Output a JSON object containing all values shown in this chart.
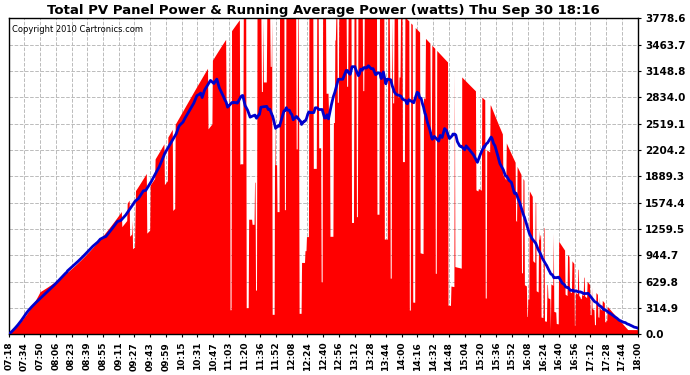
{
  "title": "Total PV Panel Power & Running Average Power (watts) Thu Sep 30 18:16",
  "copyright": "Copyright 2010 Cartronics.com",
  "yticks": [
    0.0,
    314.9,
    629.8,
    944.7,
    1259.5,
    1574.4,
    1889.3,
    2204.2,
    2519.1,
    2834.0,
    3148.8,
    3463.7,
    3778.6
  ],
  "ymax": 3778.6,
  "background_color": "#ffffff",
  "plot_bg_color": "#ffffff",
  "grid_color": "#bbbbbb",
  "fill_color": "#ff0000",
  "line_color": "#0000cc",
  "title_color": "#000000",
  "xtick_labels": [
    "07:18",
    "07:34",
    "07:50",
    "08:06",
    "08:23",
    "08:39",
    "08:55",
    "09:11",
    "09:27",
    "09:43",
    "09:59",
    "10:15",
    "10:31",
    "10:47",
    "11:03",
    "11:20",
    "11:36",
    "11:52",
    "12:08",
    "12:24",
    "12:40",
    "12:56",
    "13:12",
    "13:28",
    "13:44",
    "14:00",
    "14:16",
    "14:32",
    "14:48",
    "15:04",
    "15:20",
    "15:36",
    "15:52",
    "16:08",
    "16:24",
    "16:40",
    "16:56",
    "17:12",
    "17:28",
    "17:44",
    "18:00"
  ],
  "figwidth": 6.9,
  "figheight": 3.75,
  "dpi": 100
}
